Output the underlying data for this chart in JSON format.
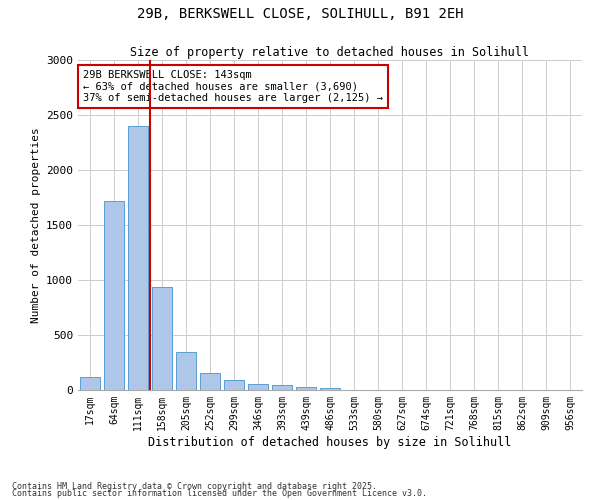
{
  "title1": "29B, BERKSWELL CLOSE, SOLIHULL, B91 2EH",
  "title2": "Size of property relative to detached houses in Solihull",
  "xlabel": "Distribution of detached houses by size in Solihull",
  "ylabel": "Number of detached properties",
  "categories": [
    "17sqm",
    "64sqm",
    "111sqm",
    "158sqm",
    "205sqm",
    "252sqm",
    "299sqm",
    "346sqm",
    "393sqm",
    "439sqm",
    "486sqm",
    "533sqm",
    "580sqm",
    "627sqm",
    "674sqm",
    "721sqm",
    "768sqm",
    "815sqm",
    "862sqm",
    "909sqm",
    "956sqm"
  ],
  "values": [
    120,
    1720,
    2400,
    940,
    350,
    155,
    90,
    55,
    45,
    30,
    20,
    0,
    0,
    0,
    0,
    0,
    0,
    0,
    0,
    0,
    0
  ],
  "bar_color": "#aec6e8",
  "bar_edge_color": "#5a9fd4",
  "vline_color": "#cc0000",
  "annotation_text": "29B BERKSWELL CLOSE: 143sqm\n← 63% of detached houses are smaller (3,690)\n37% of semi-detached houses are larger (2,125) →",
  "annotation_box_color": "#ffffff",
  "annotation_box_edge": "#cc0000",
  "ylim": [
    0,
    3000
  ],
  "yticks": [
    0,
    500,
    1000,
    1500,
    2000,
    2500,
    3000
  ],
  "footer1": "Contains HM Land Registry data © Crown copyright and database right 2025.",
  "footer2": "Contains public sector information licensed under the Open Government Licence v3.0.",
  "background_color": "#ffffff",
  "grid_color": "#cccccc"
}
